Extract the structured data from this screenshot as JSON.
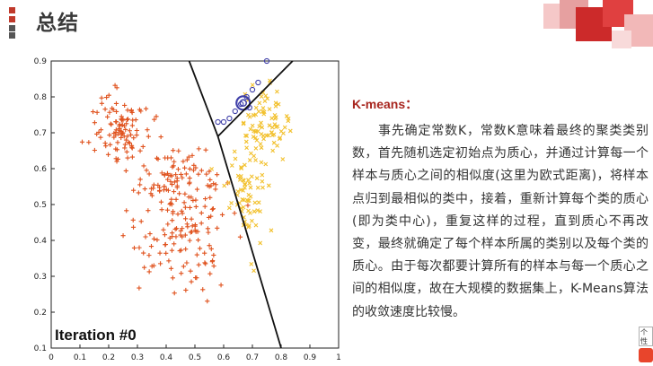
{
  "header": {
    "title": "总结",
    "accent": "#c0392b"
  },
  "chart_data": {
    "type": "scatter",
    "title": "",
    "annotation": "Iteration #0",
    "xlim": [
      0,
      1.0
    ],
    "ylim": [
      0.1,
      0.9
    ],
    "x_ticks": [
      "0",
      "0.1",
      "0.2",
      "0.3",
      "0.4",
      "0.5",
      "0.6",
      "0.7",
      "0.8",
      "0.9",
      "1"
    ],
    "y_ticks": [
      "0.1",
      "0.2",
      "0.3",
      "0.4",
      "0.5",
      "0.6",
      "0.7",
      "0.8",
      "0.9"
    ],
    "grid": false,
    "series": [
      {
        "marker": "plus",
        "color": "#e0531f",
        "clusters": [
          {
            "cx": 0.24,
            "cy": 0.72,
            "sx": 0.05,
            "sy": 0.05,
            "n": 100
          },
          {
            "cx": 0.45,
            "cy": 0.55,
            "sx": 0.085,
            "sy": 0.06,
            "n": 120
          },
          {
            "cx": 0.44,
            "cy": 0.38,
            "sx": 0.08,
            "sy": 0.07,
            "n": 90
          }
        ]
      },
      {
        "marker": "x",
        "color": "#f2c12e",
        "clusters": [
          {
            "cx": 0.74,
            "cy": 0.72,
            "sx": 0.04,
            "sy": 0.05,
            "n": 80
          },
          {
            "cx": 0.68,
            "cy": 0.55,
            "sx": 0.035,
            "sy": 0.07,
            "n": 70
          }
        ]
      },
      {
        "marker": "circle",
        "color": "#3f3fa8",
        "x": [
          0.58,
          0.6,
          0.64,
          0.66,
          0.68,
          0.7,
          0.72,
          0.75,
          0.69,
          0.62
        ],
        "y": [
          0.73,
          0.73,
          0.76,
          0.78,
          0.8,
          0.82,
          0.84,
          0.9,
          0.77,
          0.74
        ]
      }
    ],
    "centroids": [
      {
        "x": 0.668,
        "y": 0.783,
        "color": "#3f3fa8"
      }
    ],
    "boundaries": [
      {
        "x": [
          0.48,
          0.58,
          0.8
        ],
        "y": [
          0.9,
          0.69,
          0.1
        ]
      },
      {
        "x": [
          0.58,
          0.84
        ],
        "y": [
          0.69,
          0.9
        ]
      }
    ]
  },
  "text": {
    "heading": "K-means：",
    "paragraph": "事先确定常数K，常数K意味着最终的聚类类别数，首先随机选定初始点为质心，并通过计算每一个样本与质心之间的相似度(这里为欧式距离)，将样本点归到最相似的类中，接着，重新计算每个类的质心(即为类中心)，重复这样的过程，直到质心不再改变，最终就确定了每个样本所属的类别以及每个类的质心。由于每次都要计算所有的样本与每一个质心之间的相似度，故在大规模的数据集上，K-Means算法的收敛速度比较慢。"
  },
  "corner_note": "个性"
}
